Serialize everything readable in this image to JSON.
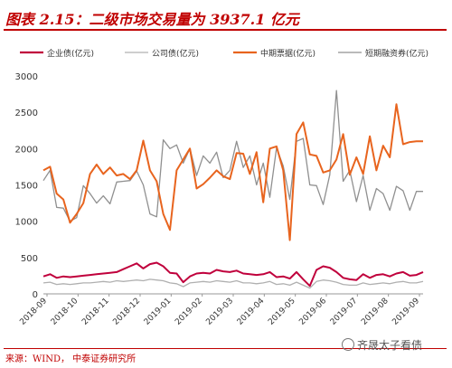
{
  "title": "图表 2.15：二级市场交易量为 3937.1 亿元",
  "source": "来源：WIND，  中泰证券研究所",
  "watermark": "齐晟太子看债",
  "chart_data": {
    "type": "line",
    "title": "",
    "xlabel": "",
    "ylabel": "",
    "ylim": [
      0,
      3000
    ],
    "yticks": [
      0,
      500,
      1000,
      1500,
      2000,
      2500,
      3000
    ],
    "xticks": [
      "2018-09",
      "2018-10",
      "2018-11",
      "2018-12",
      "2019-01",
      "2019-02",
      "2019-03",
      "2019-04",
      "2019-05",
      "2019-06",
      "2019-07",
      "2019-08",
      "2019-09"
    ],
    "grid": false,
    "legend": "top",
    "series": [
      {
        "name": "企业债(亿元)",
        "color": "#c0003c",
        "values": [
          240,
          270,
          220,
          240,
          230,
          240,
          250,
          260,
          270,
          280,
          290,
          300,
          340,
          380,
          420,
          350,
          410,
          430,
          380,
          290,
          280,
          160,
          240,
          280,
          290,
          280,
          330,
          310,
          300,
          320,
          280,
          270,
          260,
          270,
          300,
          230,
          240,
          210,
          300,
          200,
          110,
          330,
          380,
          360,
          300,
          220,
          200,
          190,
          270,
          220,
          260,
          270,
          240,
          280,
          300,
          250,
          260,
          300
        ]
      },
      {
        "name": "公司债(亿元)",
        "color": "#b0b0b0",
        "values": [
          150,
          160,
          130,
          140,
          130,
          140,
          150,
          150,
          160,
          170,
          160,
          180,
          170,
          180,
          190,
          180,
          200,
          190,
          180,
          150,
          140,
          100,
          150,
          160,
          170,
          160,
          180,
          170,
          160,
          180,
          150,
          150,
          140,
          150,
          170,
          130,
          140,
          120,
          160,
          120,
          80,
          170,
          190,
          180,
          160,
          130,
          120,
          120,
          150,
          130,
          140,
          150,
          140,
          160,
          170,
          150,
          150,
          170
        ]
      },
      {
        "name": "中期票据(亿元)",
        "color": "#e8641e",
        "values": [
          1700,
          1750,
          1380,
          1300,
          980,
          1100,
          1250,
          1650,
          1780,
          1650,
          1740,
          1630,
          1650,
          1580,
          1700,
          2110,
          1700,
          1550,
          1100,
          880,
          1700,
          1850,
          2000,
          1450,
          1510,
          1600,
          1700,
          1620,
          1580,
          1940,
          1930,
          1650,
          1950,
          1260,
          2000,
          2030,
          1700,
          740,
          2200,
          2360,
          1920,
          1900,
          1670,
          1700,
          1850,
          2200,
          1640,
          1880,
          1650,
          2170,
          1700,
          2040,
          1880,
          2610,
          2060,
          2090,
          2100,
          2100
        ]
      },
      {
        "name": "短期融资券(亿元)",
        "color": "#909090",
        "values": [
          1560,
          1700,
          1190,
          1180,
          1000,
          1050,
          1490,
          1380,
          1250,
          1350,
          1240,
          1540,
          1550,
          1560,
          1690,
          1500,
          1100,
          1060,
          2120,
          2000,
          2050,
          1800,
          2000,
          1630,
          1900,
          1800,
          1950,
          1600,
          1700,
          2100,
          1740,
          1900,
          1500,
          1800,
          1330,
          2010,
          1760,
          1300,
          2100,
          2140,
          1500,
          1490,
          1230,
          1640,
          2800,
          1550,
          1700,
          1270,
          1630,
          1150,
          1450,
          1380,
          1150,
          1480,
          1420,
          1150,
          1410,
          1410
        ]
      }
    ]
  }
}
